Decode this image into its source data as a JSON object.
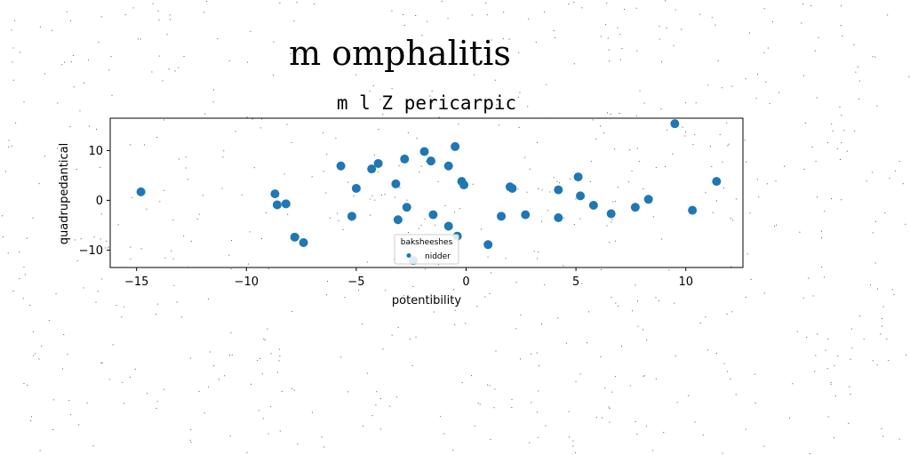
{
  "figure": {
    "suptitle": "m omphalitis",
    "title": "m l Z pericarpic"
  },
  "chart_data": {
    "type": "scatter",
    "title": "m l Z pericarpic",
    "xlabel": "potentibility",
    "ylabel": "quadrupedantical",
    "xlim": [
      -16.2,
      12.6
    ],
    "ylim": [
      -13.5,
      16.5
    ],
    "xticks": [
      -15,
      -10,
      -5,
      0,
      5,
      10
    ],
    "xtick_labels": [
      "−15",
      "−10",
      "−5",
      "0",
      "5",
      "10"
    ],
    "yticks": [
      -10,
      0,
      10
    ],
    "ytick_labels": [
      "−10",
      "0",
      "10"
    ],
    "grid": false,
    "legend": {
      "title": "baksheeshes",
      "placement": "bottom-center"
    },
    "series": [
      {
        "name": "nidder",
        "color": "#1f77b4",
        "x": [
          -14.8,
          -8.7,
          -8.6,
          -8.2,
          -7.8,
          -7.4,
          -5.7,
          -5.2,
          -5.0,
          -4.3,
          -4.0,
          -3.2,
          -3.1,
          -2.8,
          -2.7,
          -2.4,
          -1.9,
          -1.6,
          -1.5,
          -0.8,
          -0.8,
          -0.5,
          -0.4,
          -0.2,
          -0.1,
          1.0,
          1.6,
          2.0,
          2.1,
          2.7,
          4.2,
          4.2,
          5.1,
          5.2,
          5.8,
          6.6,
          7.7,
          8.3,
          9.5,
          10.3,
          11.4
        ],
        "y": [
          1.7,
          1.3,
          -0.9,
          -0.7,
          -7.4,
          -8.5,
          6.9,
          -3.2,
          2.4,
          6.3,
          7.4,
          3.3,
          -3.9,
          8.3,
          -1.4,
          -12.1,
          9.8,
          7.9,
          -2.9,
          6.9,
          -5.2,
          10.8,
          -7.2,
          3.8,
          3.1,
          -8.9,
          -3.2,
          2.7,
          2.4,
          -2.9,
          2.1,
          -3.5,
          4.7,
          0.9,
          -1.0,
          -2.7,
          -1.4,
          0.2,
          15.4,
          -2.0,
          3.8
        ]
      }
    ]
  }
}
